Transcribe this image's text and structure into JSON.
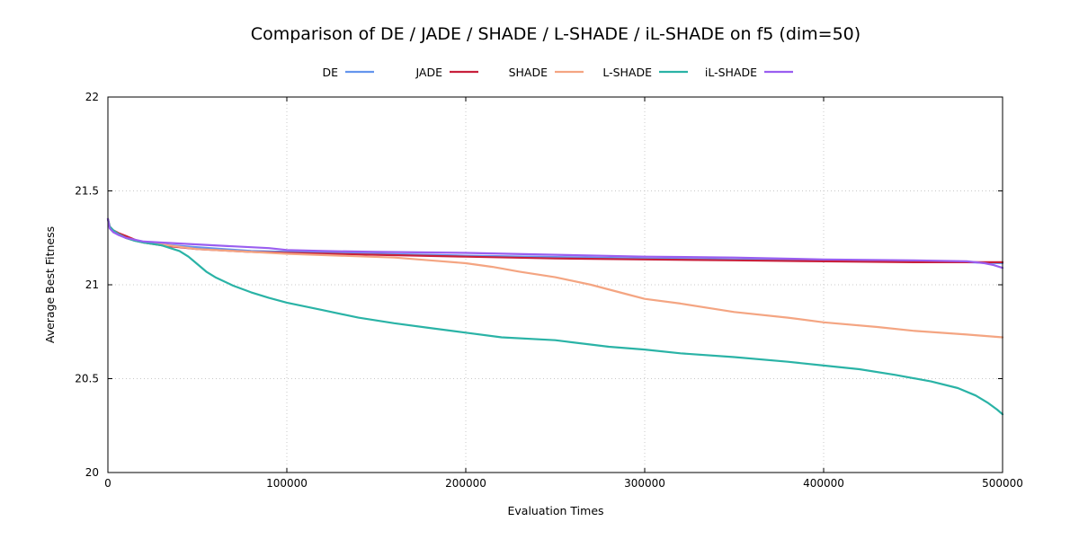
{
  "chart_data": {
    "type": "line",
    "title": "Comparison of DE / JADE / SHADE / L-SHADE / iL-SHADE on f5 (dim=50)",
    "xlabel": "Evaluation Times",
    "ylabel": "Average Best Fitness",
    "xlim": [
      0,
      500000
    ],
    "ylim": [
      20,
      22
    ],
    "xticks": [
      0,
      100000,
      200000,
      300000,
      400000,
      500000
    ],
    "yticks": [
      20,
      20.5,
      21,
      21.5,
      22
    ],
    "grid": true,
    "legend_position": "top",
    "series": [
      {
        "name": "DE",
        "color": "#6495ed",
        "x": [
          0,
          1000,
          3000,
          6000,
          10000,
          15000,
          20000,
          30000,
          50000,
          80000,
          100000,
          150000,
          200000,
          250000,
          300000,
          350000,
          400000,
          450000,
          480000,
          500000
        ],
        "y": [
          21.35,
          21.31,
          21.29,
          21.27,
          21.25,
          21.235,
          21.225,
          21.215,
          21.2,
          21.18,
          21.175,
          21.165,
          21.155,
          21.148,
          21.14,
          21.135,
          21.13,
          21.125,
          21.12,
          21.115
        ]
      },
      {
        "name": "JADE",
        "color": "#c8203c",
        "x": [
          0,
          1000,
          3000,
          6000,
          10000,
          15000,
          20000,
          30000,
          50000,
          80000,
          100000,
          150000,
          200000,
          250000,
          300000,
          350000,
          400000,
          450000,
          480000,
          500000
        ],
        "y": [
          21.35,
          21.31,
          21.29,
          21.275,
          21.26,
          21.24,
          21.225,
          21.21,
          21.19,
          21.175,
          21.17,
          21.16,
          21.15,
          21.14,
          21.135,
          21.13,
          21.125,
          21.12,
          21.12,
          21.12
        ]
      },
      {
        "name": "SHADE",
        "color": "#f4a582",
        "x": [
          0,
          1000,
          3000,
          6000,
          10000,
          15000,
          20000,
          30000,
          50000,
          80000,
          100000,
          130000,
          160000,
          180000,
          200000,
          215000,
          230000,
          250000,
          270000,
          290000,
          300000,
          320000,
          350000,
          380000,
          400000,
          430000,
          450000,
          480000,
          500000
        ],
        "y": [
          21.35,
          21.31,
          21.29,
          21.27,
          21.25,
          21.235,
          21.225,
          21.215,
          21.19,
          21.175,
          21.165,
          21.155,
          21.145,
          21.13,
          21.115,
          21.095,
          21.07,
          21.04,
          21.0,
          20.95,
          20.925,
          20.9,
          20.855,
          20.825,
          20.8,
          20.775,
          20.755,
          20.735,
          20.72
        ]
      },
      {
        "name": "L-SHADE",
        "color": "#2ab3a6",
        "x": [
          0,
          1000,
          3000,
          6000,
          10000,
          15000,
          20000,
          30000,
          40000,
          45000,
          50000,
          55000,
          60000,
          70000,
          80000,
          90000,
          100000,
          120000,
          140000,
          160000,
          180000,
          200000,
          220000,
          250000,
          280000,
          300000,
          320000,
          350000,
          380000,
          400000,
          420000,
          440000,
          460000,
          475000,
          485000,
          492000,
          497000,
          500000
        ],
        "y": [
          21.35,
          21.31,
          21.29,
          21.27,
          21.25,
          21.235,
          21.225,
          21.21,
          21.18,
          21.15,
          21.11,
          21.07,
          21.04,
          20.995,
          20.96,
          20.93,
          20.905,
          20.865,
          20.825,
          20.795,
          20.77,
          20.745,
          20.72,
          20.705,
          20.67,
          20.655,
          20.635,
          20.615,
          20.59,
          20.57,
          20.55,
          20.52,
          20.485,
          20.45,
          20.41,
          20.37,
          20.335,
          20.31
        ]
      },
      {
        "name": "iL-SHADE",
        "color": "#9a5ef0",
        "x": [
          0,
          1000,
          3000,
          6000,
          10000,
          15000,
          20000,
          30000,
          50000,
          70000,
          90000,
          100000,
          120000,
          150000,
          200000,
          250000,
          300000,
          350000,
          400000,
          450000,
          480000,
          490000,
          495000,
          500000
        ],
        "y": [
          21.35,
          21.3,
          21.28,
          21.265,
          21.25,
          21.24,
          21.23,
          21.225,
          21.215,
          21.205,
          21.195,
          21.185,
          21.18,
          21.175,
          21.17,
          21.16,
          21.15,
          21.145,
          21.135,
          21.13,
          21.125,
          21.115,
          21.105,
          21.09
        ]
      }
    ]
  }
}
